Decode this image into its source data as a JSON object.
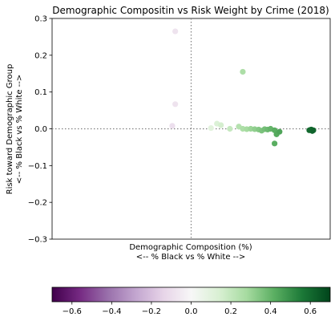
{
  "chart_data": {
    "type": "scatter",
    "title": "Demographic Compositin vs Risk Weight by Crime (2018)",
    "xlabel_line1": "Demographic Composition (%)",
    "xlabel_line2": "<-- % Black vs % White -->",
    "ylabel_line1": "Risk toward Demographic Group",
    "ylabel_line2": "<-- % Black vs % White -->",
    "xlim": [
      -0.7,
      0.7
    ],
    "ylim": [
      -0.3,
      0.3
    ],
    "yticks": [
      -0.3,
      -0.2,
      -0.1,
      0.0,
      0.1,
      0.2,
      0.3
    ],
    "ytick_labels": [
      "−0.3",
      "−0.2",
      "−0.1",
      "0.0",
      "0.1",
      "0.2",
      "0.3"
    ],
    "colorbar": {
      "colormap": "PRGn",
      "range": [
        -0.7,
        0.7
      ],
      "ticks": [
        -0.6,
        -0.4,
        -0.2,
        0.0,
        0.2,
        0.4,
        0.6
      ],
      "tick_labels": [
        "−0.6",
        "−0.4",
        "−0.2",
        "0.0",
        "0.2",
        "0.4",
        "0.6"
      ]
    },
    "reference_lines": {
      "x": 0.0,
      "y": 0.0,
      "style": "dotted",
      "color": "#808080"
    },
    "points": [
      {
        "x": -0.08,
        "y": 0.265
      },
      {
        "x": -0.08,
        "y": 0.067
      },
      {
        "x": -0.095,
        "y": 0.008
      },
      {
        "x": 0.26,
        "y": 0.155
      },
      {
        "x": 0.1,
        "y": 0.002
      },
      {
        "x": 0.13,
        "y": 0.014
      },
      {
        "x": 0.15,
        "y": 0.01
      },
      {
        "x": 0.195,
        "y": 0.0
      },
      {
        "x": 0.24,
        "y": 0.006
      },
      {
        "x": 0.26,
        "y": 0.0
      },
      {
        "x": 0.28,
        "y": -0.001
      },
      {
        "x": 0.3,
        "y": 0.0
      },
      {
        "x": 0.32,
        "y": -0.001
      },
      {
        "x": 0.34,
        "y": -0.002
      },
      {
        "x": 0.355,
        "y": -0.005
      },
      {
        "x": 0.37,
        "y": -0.001
      },
      {
        "x": 0.385,
        "y": -0.002
      },
      {
        "x": 0.4,
        "y": 0.0
      },
      {
        "x": 0.42,
        "y": -0.004
      },
      {
        "x": 0.43,
        "y": -0.015
      },
      {
        "x": 0.445,
        "y": -0.008
      },
      {
        "x": 0.42,
        "y": -0.04
      },
      {
        "x": 0.595,
        "y": -0.004
      },
      {
        "x": 0.605,
        "y": -0.002
      },
      {
        "x": 0.61,
        "y": -0.006
      },
      {
        "x": 0.6,
        "y": -0.003
      },
      {
        "x": 0.615,
        "y": -0.004
      }
    ]
  }
}
